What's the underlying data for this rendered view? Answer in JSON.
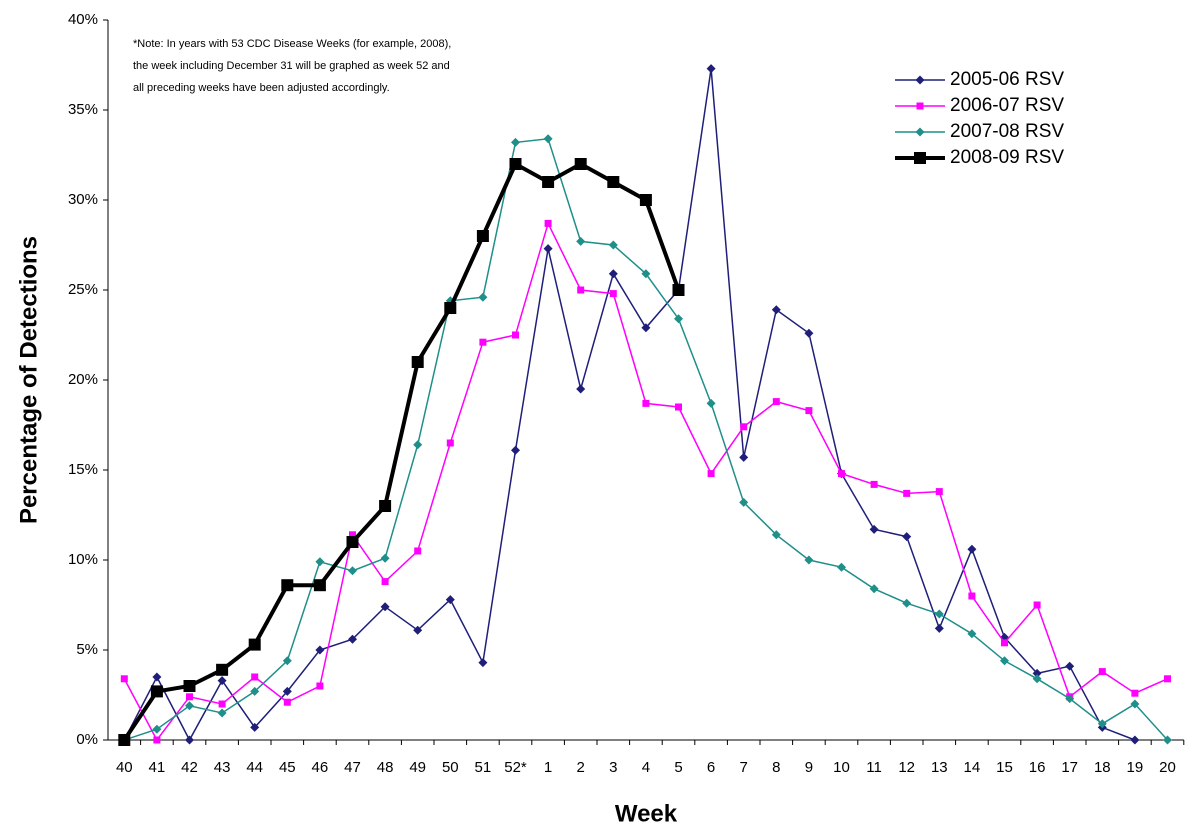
{
  "chart_data": {
    "type": "line",
    "y_label": "Percentage of Detections",
    "x_label": "Week",
    "note": [
      "*Note: In years with 53 CDC Disease Weeks (for example, 2008),",
      "the week including December 31 will be graphed as week 52 and",
      "all preceding weeks have been adjusted accordingly."
    ],
    "categories": [
      "40",
      "41",
      "42",
      "43",
      "44",
      "45",
      "46",
      "47",
      "48",
      "49",
      "50",
      "51",
      "52*",
      "1",
      "2",
      "3",
      "4",
      "5",
      "6",
      "7",
      "8",
      "9",
      "10",
      "11",
      "12",
      "13",
      "14",
      "15",
      "16",
      "17",
      "18",
      "19",
      "20"
    ],
    "series": [
      {
        "name": "2005-06 RSV",
        "color": "#1f1f7a",
        "marker": "diamond",
        "width": 1.5,
        "values": [
          0,
          3.5,
          0,
          3.3,
          0.7,
          2.7,
          5,
          5.6,
          7.4,
          6.1,
          7.8,
          4.3,
          16.1,
          27.3,
          19.5,
          25.9,
          22.9,
          25,
          37.3,
          15.7,
          23.9,
          22.6,
          14.8,
          11.7,
          11.3,
          6.2,
          10.6,
          5.7,
          3.7,
          4.1,
          0.7,
          0,
          null
        ]
      },
      {
        "name": "2006-07 RSV",
        "color": "#ff00ff",
        "marker": "square",
        "width": 1.5,
        "values": [
          3.4,
          0,
          2.4,
          2.0,
          3.5,
          2.1,
          3.0,
          11.4,
          8.8,
          10.5,
          16.5,
          22.1,
          22.5,
          28.7,
          25.0,
          24.8,
          18.7,
          18.5,
          14.8,
          17.4,
          18.8,
          18.3,
          14.8,
          14.2,
          13.7,
          13.8,
          8.0,
          5.4,
          7.5,
          2.4,
          3.8,
          2.6,
          3.4
        ]
      },
      {
        "name": "2007-08 RSV",
        "color": "#1f8f8a",
        "marker": "diamond",
        "width": 1.5,
        "values": [
          0,
          0.6,
          1.9,
          1.5,
          2.7,
          4.4,
          9.9,
          9.4,
          10.1,
          16.4,
          24.4,
          24.6,
          33.2,
          33.4,
          27.7,
          27.5,
          25.9,
          23.4,
          18.7,
          13.2,
          11.4,
          10.0,
          9.6,
          8.4,
          7.6,
          7.0,
          5.9,
          4.4,
          3.4,
          2.3,
          0.9,
          2.0,
          0
        ]
      },
      {
        "name": "2008-09 RSV",
        "color": "#000000",
        "marker": "bigsquare",
        "width": 4,
        "values": [
          0,
          2.7,
          3.0,
          3.9,
          5.3,
          8.6,
          8.6,
          11.0,
          13.0,
          21.0,
          24.0,
          28.0,
          32.0,
          31.0,
          32.0,
          31.0,
          30.0,
          25.0,
          null,
          null,
          null,
          null,
          null,
          null,
          null,
          null,
          null,
          null,
          null,
          null,
          null,
          null,
          null
        ]
      }
    ],
    "ylim": [
      0,
      40
    ],
    "yticks": [
      {
        "value": 0,
        "label": "0%"
      },
      {
        "value": 5,
        "label": "5%"
      },
      {
        "value": 10,
        "label": "10%"
      },
      {
        "value": 15,
        "label": "15%"
      },
      {
        "value": 20,
        "label": "20%"
      },
      {
        "value": 25,
        "label": "25%"
      },
      {
        "value": 30,
        "label": "30%"
      },
      {
        "value": 35,
        "label": "35%"
      },
      {
        "value": 40,
        "label": "40%"
      }
    ],
    "grid": false,
    "legend": "top-right"
  }
}
